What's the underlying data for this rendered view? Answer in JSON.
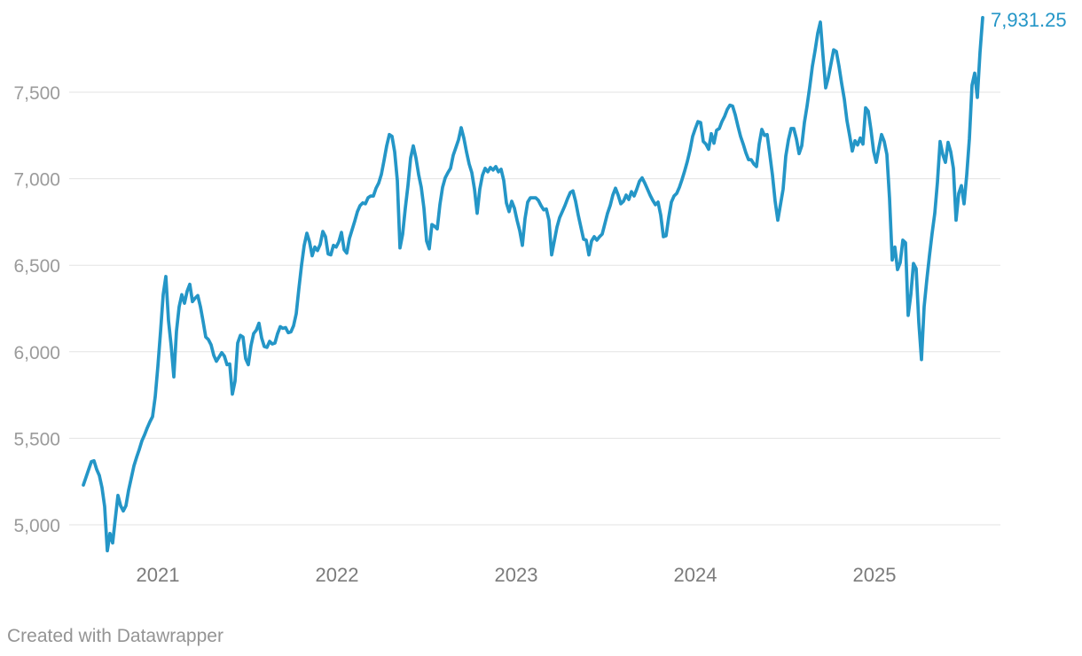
{
  "page": {
    "background": "#ffffff"
  },
  "footer": {
    "attribution": "Created with Datawrapper"
  },
  "colors": {
    "line": "#2496c7",
    "last_value_label": "#2496c7",
    "gridline": "#e3e3e3",
    "y_tick_text": "#9b9b9b",
    "x_tick_text": "#7b7b7b",
    "footer_text": "#949494"
  },
  "chart_data": {
    "type": "line",
    "title": "",
    "xlabel": "",
    "ylabel": "",
    "legend": "none",
    "grid": "horizontal",
    "line_color": "#2496c7",
    "last_value": 7931.25,
    "last_value_label": "7,931.25",
    "x": {
      "start_year": 2020.584,
      "end_year": 2025.604,
      "tick_values": [
        2021,
        2022,
        2023,
        2024,
        2025
      ],
      "tick_labels": [
        "2021",
        "2022",
        "2023",
        "2024",
        "2025"
      ]
    },
    "y": {
      "tick_values": [
        5000,
        5500,
        6000,
        6500,
        7000,
        7500
      ],
      "tick_labels": [
        "5,000",
        "5,500",
        "6,000",
        "6,500",
        "7,000",
        "7,500"
      ],
      "shown_min": 4845,
      "shown_max": 7931.25
    },
    "values": [
      5230,
      5275,
      5320,
      5365,
      5370,
      5320,
      5285,
      5215,
      5105,
      4850,
      4950,
      4895,
      5035,
      5170,
      5110,
      5080,
      5110,
      5200,
      5270,
      5340,
      5390,
      5435,
      5485,
      5520,
      5560,
      5595,
      5625,
      5740,
      5915,
      6115,
      6330,
      6435,
      6180,
      6035,
      5855,
      6120,
      6260,
      6330,
      6280,
      6350,
      6390,
      6290,
      6310,
      6325,
      6260,
      6175,
      6085,
      6070,
      6040,
      5980,
      5945,
      5970,
      5995,
      5975,
      5925,
      5930,
      5755,
      5830,
      6050,
      6095,
      6085,
      5960,
      5925,
      6035,
      6105,
      6125,
      6165,
      6080,
      6030,
      6025,
      6060,
      6045,
      6050,
      6105,
      6145,
      6135,
      6140,
      6110,
      6115,
      6150,
      6220,
      6365,
      6500,
      6615,
      6685,
      6635,
      6555,
      6605,
      6585,
      6620,
      6695,
      6665,
      6565,
      6560,
      6615,
      6605,
      6635,
      6690,
      6590,
      6570,
      6655,
      6705,
      6755,
      6810,
      6845,
      6860,
      6855,
      6890,
      6900,
      6900,
      6945,
      6975,
      7025,
      7105,
      7190,
      7255,
      7245,
      7155,
      6990,
      6600,
      6680,
      6830,
      6960,
      7120,
      7190,
      7120,
      7025,
      6950,
      6830,
      6640,
      6595,
      6735,
      6725,
      6710,
      6850,
      6950,
      7005,
      7035,
      7060,
      7135,
      7180,
      7225,
      7295,
      7235,
      7155,
      7085,
      7035,
      6940,
      6800,
      6940,
      7020,
      7060,
      7040,
      7065,
      7050,
      7070,
      7040,
      7055,
      6990,
      6860,
      6810,
      6870,
      6830,
      6760,
      6700,
      6615,
      6770,
      6865,
      6890,
      6890,
      6890,
      6875,
      6845,
      6820,
      6825,
      6760,
      6560,
      6640,
      6720,
      6775,
      6810,
      6845,
      6885,
      6920,
      6930,
      6870,
      6790,
      6720,
      6650,
      6645,
      6560,
      6640,
      6665,
      6645,
      6665,
      6680,
      6740,
      6800,
      6845,
      6905,
      6945,
      6905,
      6855,
      6870,
      6905,
      6880,
      6925,
      6900,
      6940,
      6985,
      7005,
      6975,
      6940,
      6905,
      6875,
      6850,
      6865,
      6790,
      6665,
      6670,
      6775,
      6865,
      6900,
      6915,
      6950,
      6995,
      7045,
      7100,
      7165,
      7245,
      7290,
      7330,
      7325,
      7215,
      7200,
      7170,
      7260,
      7205,
      7280,
      7290,
      7330,
      7360,
      7400,
      7425,
      7420,
      7370,
      7305,
      7245,
      7200,
      7150,
      7110,
      7110,
      7085,
      7070,
      7200,
      7285,
      7250,
      7255,
      7140,
      7020,
      6870,
      6760,
      6850,
      6940,
      7130,
      7225,
      7290,
      7290,
      7230,
      7145,
      7190,
      7325,
      7420,
      7530,
      7650,
      7740,
      7840,
      7905,
      7710,
      7525,
      7585,
      7665,
      7745,
      7735,
      7650,
      7550,
      7460,
      7335,
      7250,
      7160,
      7220,
      7195,
      7235,
      7200,
      7410,
      7390,
      7285,
      7160,
      7095,
      7180,
      7255,
      7215,
      7140,
      6885,
      6530,
      6605,
      6475,
      6515,
      6645,
      6630,
      6210,
      6330,
      6510,
      6480,
      6170,
      5955,
      6260,
      6415,
      6555,
      6685,
      6800,
      6980,
      7215,
      7140,
      7095,
      7210,
      7155,
      7060,
      6760,
      6915,
      6960,
      6855,
      7020,
      7230,
      7540,
      7610,
      7470,
      7730,
      7931.25
    ]
  }
}
